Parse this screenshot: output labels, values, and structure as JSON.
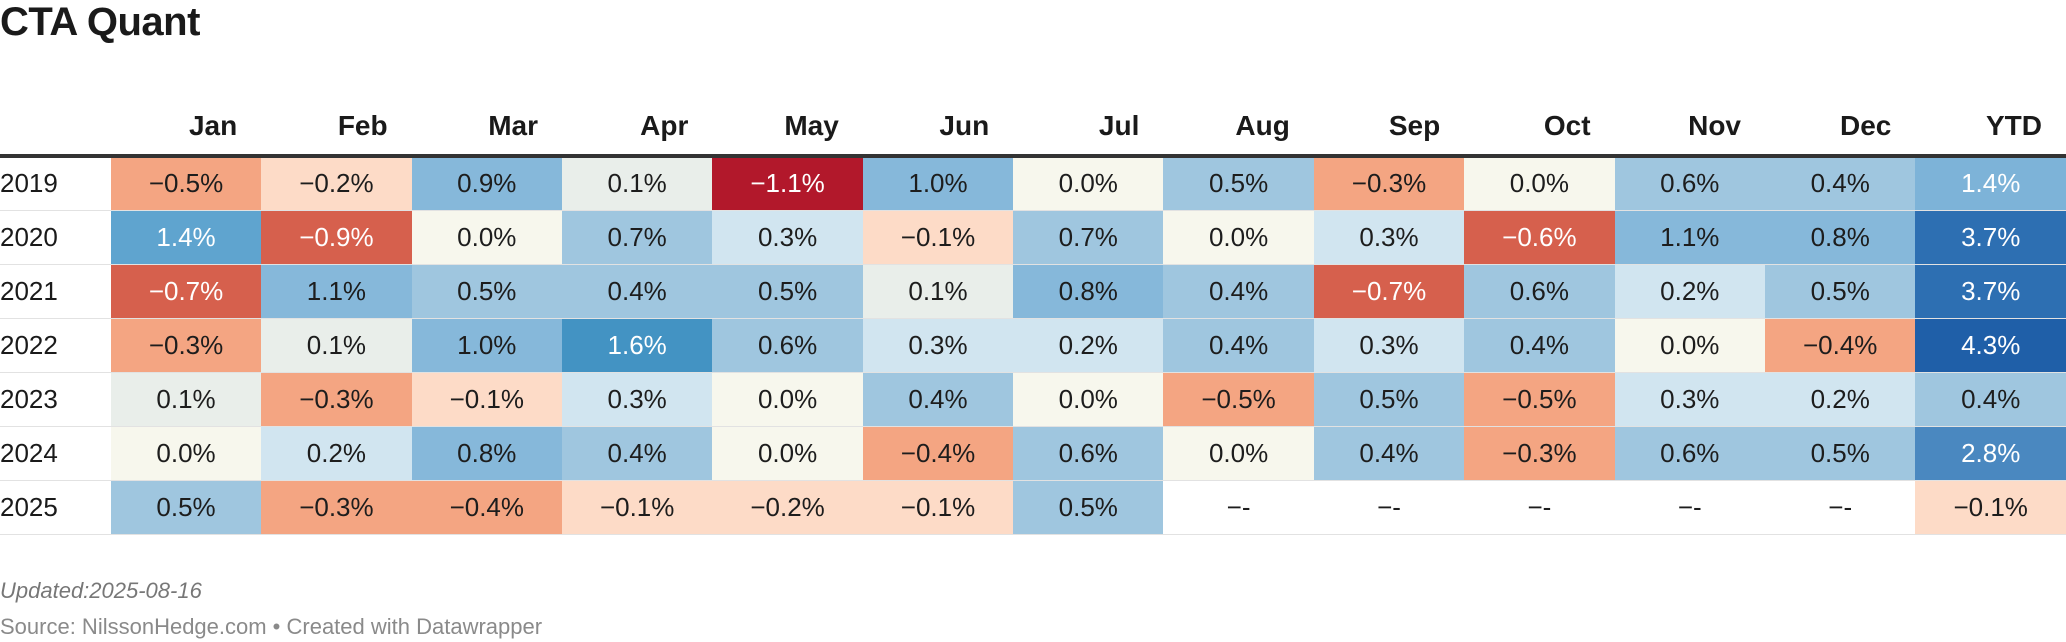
{
  "title": "CTA Quant",
  "updated": "Updated:2025-08-16",
  "source": "Source: NilssonHedge.com • Created with Datawrapper",
  "chart_data": {
    "type": "heatmap",
    "title": "CTA Quant",
    "columns": [
      "Jan",
      "Feb",
      "Mar",
      "Apr",
      "May",
      "Jun",
      "Jul",
      "Aug",
      "Sep",
      "Oct",
      "Nov",
      "Dec",
      "YTD"
    ],
    "rows": [
      {
        "year": "2019",
        "values": [
          "-0.5%",
          "-0.2%",
          "0.9%",
          "0.1%",
          "-1.1%",
          "1.0%",
          "0.0%",
          "0.5%",
          "-0.3%",
          "0.0%",
          "0.6%",
          "0.4%",
          "1.4%"
        ]
      },
      {
        "year": "2020",
        "values": [
          "1.4%",
          "-0.9%",
          "0.0%",
          "0.7%",
          "0.3%",
          "-0.1%",
          "0.7%",
          "0.0%",
          "0.3%",
          "-0.6%",
          "1.1%",
          "0.8%",
          "3.7%"
        ]
      },
      {
        "year": "2021",
        "values": [
          "-0.7%",
          "1.1%",
          "0.5%",
          "0.4%",
          "0.5%",
          "0.1%",
          "0.8%",
          "0.4%",
          "-0.7%",
          "0.6%",
          "0.2%",
          "0.5%",
          "3.7%"
        ]
      },
      {
        "year": "2022",
        "values": [
          "-0.3%",
          "0.1%",
          "1.0%",
          "1.6%",
          "0.6%",
          "0.3%",
          "0.2%",
          "0.4%",
          "0.3%",
          "0.4%",
          "0.0%",
          "-0.4%",
          "4.3%"
        ]
      },
      {
        "year": "2023",
        "values": [
          "0.1%",
          "-0.3%",
          "-0.1%",
          "0.3%",
          "0.0%",
          "0.4%",
          "0.0%",
          "-0.5%",
          "0.5%",
          "-0.5%",
          "0.3%",
          "0.2%",
          "0.4%"
        ]
      },
      {
        "year": "2024",
        "values": [
          "0.0%",
          "0.2%",
          "0.8%",
          "0.4%",
          "0.0%",
          "-0.4%",
          "0.6%",
          "0.0%",
          "0.4%",
          "-0.3%",
          "0.6%",
          "0.5%",
          "2.8%"
        ]
      },
      {
        "year": "2025",
        "values": [
          "0.5%",
          "-0.3%",
          "-0.4%",
          "-0.1%",
          "-0.2%",
          "-0.1%",
          "0.5%",
          "--",
          "--",
          "--",
          "--",
          "--",
          "-0.1%"
        ]
      }
    ],
    "colors": {
      "neg_strong": "#b2182b",
      "neg_mid": "#d6604d",
      "neg_light": "#f4a582",
      "neg_pale": "#fddbc7",
      "neutral": "#f7f7ed",
      "pos_pale": "#d1e5f0",
      "pos_light": "#92c5de",
      "pos_mid": "#4393c3",
      "pos_strong": "#2166ac",
      "missing": "#ffffff"
    }
  }
}
